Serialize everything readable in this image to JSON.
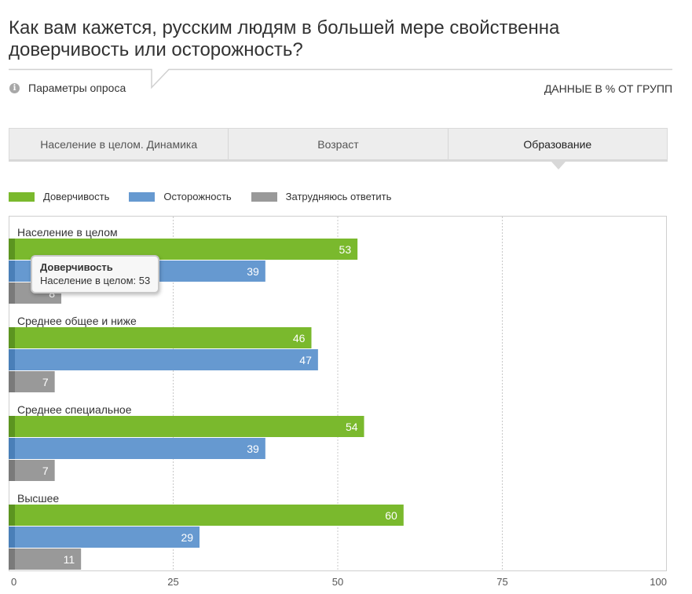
{
  "title": "Как вам кажется, русским людям в большей мере свойственна доверчивость или осторожность?",
  "params_label": "Параметры опроса",
  "info_icon": "info-icon",
  "units_label": "ДАННЫЕ В % ОТ ГРУПП",
  "tabs": [
    {
      "label": "Население в целом. Динамика",
      "active": false
    },
    {
      "label": "Возраст",
      "active": false
    },
    {
      "label": "Образование",
      "active": true
    }
  ],
  "colors": {
    "trust": "#7ab92d",
    "trust_dark": "#5c9420",
    "caution": "#6699d0",
    "caution_dark": "#4a7fb8",
    "undecided": "#999999",
    "undecided_dark": "#7a7a7a"
  },
  "tooltip": {
    "title": "Доверчивость",
    "text": "Население в целом: 53"
  },
  "chart_data": {
    "type": "bar",
    "orientation": "horizontal",
    "categories": [
      "Население в целом",
      "Среднее общее и ниже",
      "Среднее специальное",
      "Высшее"
    ],
    "series": [
      {
        "name": "Доверчивость",
        "values": [
          53,
          46,
          54,
          60
        ],
        "color": "#7ab92d"
      },
      {
        "name": "Осторожность",
        "values": [
          39,
          47,
          39,
          29
        ],
        "color": "#6699d0"
      },
      {
        "name": "Затрудняюсь ответить",
        "values": [
          8,
          7,
          7,
          11
        ],
        "color": "#999999"
      }
    ],
    "xlim": [
      0,
      100
    ],
    "xticks": [
      0,
      25,
      50,
      75,
      100
    ],
    "grid": true,
    "legend": "top-left"
  }
}
